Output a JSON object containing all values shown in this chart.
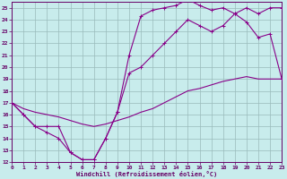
{
  "xlabel": "Windchill (Refroidissement éolien,°C)",
  "background_color": "#c8ecec",
  "line_color": "#880088",
  "grid_color": "#99bbbb",
  "xlim": [
    0,
    23
  ],
  "ylim": [
    12,
    25.5
  ],
  "xticks": [
    0,
    1,
    2,
    3,
    4,
    5,
    6,
    7,
    8,
    9,
    10,
    11,
    12,
    13,
    14,
    15,
    16,
    17,
    18,
    19,
    20,
    21,
    22,
    23
  ],
  "yticks": [
    12,
    13,
    14,
    15,
    16,
    17,
    18,
    19,
    20,
    21,
    22,
    23,
    24,
    25
  ],
  "line1_x": [
    0,
    1,
    2,
    3,
    4,
    5,
    6,
    7,
    8,
    9,
    10,
    11,
    12,
    13,
    14,
    15,
    16,
    17,
    18,
    19,
    20,
    21,
    22,
    23
  ],
  "line1_y": [
    17.0,
    16.0,
    15.0,
    14.5,
    14.0,
    12.8,
    12.2,
    12.2,
    14.0,
    16.2,
    21.0,
    24.3,
    24.8,
    25.0,
    25.2,
    25.7,
    25.2,
    24.8,
    25.0,
    24.5,
    25.0,
    24.5,
    25.0,
    25.0
  ],
  "line2_x": [
    0,
    1,
    2,
    3,
    4,
    5,
    6,
    7,
    8,
    9,
    10,
    11,
    12,
    13,
    14,
    15,
    16,
    17,
    18,
    19,
    20,
    21,
    22,
    23
  ],
  "line2_y": [
    17.0,
    16.0,
    15.0,
    15.0,
    15.0,
    12.8,
    12.2,
    12.2,
    14.0,
    16.2,
    19.5,
    20.0,
    21.0,
    22.0,
    23.0,
    24.0,
    23.5,
    23.0,
    23.5,
    24.5,
    23.8,
    22.5,
    22.8,
    19.0
  ],
  "line3_x": [
    0,
    1,
    2,
    3,
    4,
    5,
    6,
    7,
    8,
    9,
    10,
    11,
    12,
    13,
    14,
    15,
    16,
    17,
    18,
    19,
    20,
    21,
    22,
    23
  ],
  "line3_y": [
    17.0,
    16.5,
    16.2,
    16.0,
    15.8,
    15.5,
    15.2,
    15.0,
    15.2,
    15.5,
    15.8,
    16.2,
    16.5,
    17.0,
    17.5,
    18.0,
    18.2,
    18.5,
    18.8,
    19.0,
    19.2,
    19.0,
    19.0,
    19.0
  ]
}
